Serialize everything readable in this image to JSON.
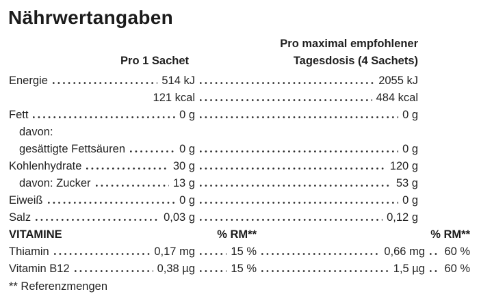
{
  "title": "Nährwertangaben",
  "columns": {
    "per_sachet": "Pro 1 Sachet",
    "per_daily_dose_line1": "Pro maximal empfohlener",
    "per_daily_dose_line2": "Tagesdosis (4 Sachets)"
  },
  "nutrients": [
    {
      "label": "Energie",
      "v1": "514 kJ",
      "v2": "2055 kJ"
    },
    {
      "label": "",
      "v1": "121 kcal",
      "v2": "484 kcal"
    },
    {
      "label": "Fett",
      "v1": "0 g",
      "v2": "0 g"
    },
    {
      "label": "davon:",
      "v1": "",
      "v2": ""
    },
    {
      "label": "gesättigte Fettsäuren",
      "v1": "0 g",
      "v2": "0 g"
    },
    {
      "label": "Kohlenhydrate",
      "v1": "30 g",
      "v2": "120 g"
    },
    {
      "label": "davon: Zucker",
      "v1": "13 g",
      "v2": "53 g"
    },
    {
      "label": "Eiweiß",
      "v1": "0 g",
      "v2": "0 g"
    },
    {
      "label": "Salz",
      "v1": "0,03 g",
      "v2": "0,12 g"
    }
  ],
  "vitamins_header": {
    "label": "VITAMINE",
    "rm1": "% RM**",
    "rm2": "% RM**"
  },
  "vitamins": [
    {
      "label": "Thiamin",
      "v1": "0,17 mg",
      "p1": "15 %",
      "v2": "0,66 mg",
      "p2": "60 %"
    },
    {
      "label": "Vitamin B12",
      "v1": "0,38 µg",
      "p1": "15 %",
      "v2": "1,5 µg",
      "p2": "60 %"
    }
  ],
  "footnote": "** Referenzmengen",
  "colors": {
    "background": "#ffffff",
    "text": "#232323",
    "heading": "#1b1b1b"
  }
}
